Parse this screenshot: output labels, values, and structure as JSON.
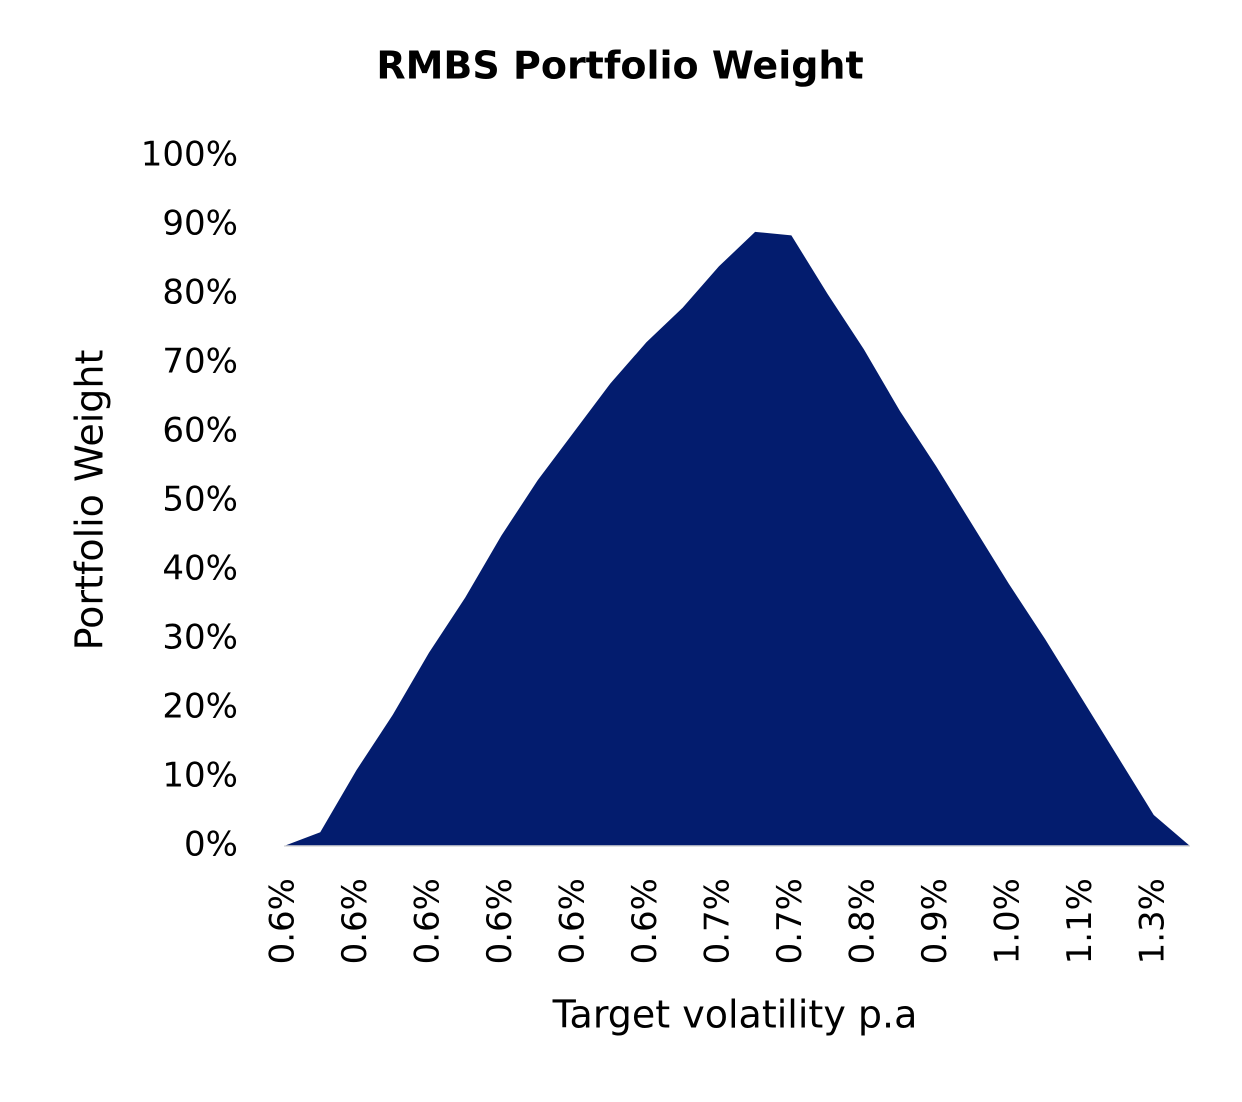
{
  "chart_data": {
    "type": "area",
    "title": "RMBS Portfolio Weight",
    "x_label": "Target volatility p.a",
    "y_label": "Portfolio Weight",
    "categories": [
      "0.6%",
      null,
      "0.6%",
      null,
      "0.6%",
      null,
      "0.6%",
      null,
      "0.6%",
      null,
      "0.6%",
      null,
      "0.7%",
      null,
      "0.7%",
      null,
      "0.8%",
      null,
      "0.9%",
      null,
      "1.0%",
      null,
      "1.1%",
      null,
      "1.3%",
      null
    ],
    "values": [
      0,
      2,
      11,
      19,
      28,
      36,
      45,
      53,
      60,
      67,
      73,
      78,
      84,
      89,
      88.5,
      80,
      72,
      63,
      55,
      46.5,
      38,
      30,
      21.5,
      13,
      4.5,
      0
    ],
    "color": "#031c6e",
    "ylim": [
      0,
      100
    ],
    "yticks": [
      {
        "value": 0,
        "label": "0%"
      },
      {
        "value": 10,
        "label": "10%"
      },
      {
        "value": 20,
        "label": "20%"
      },
      {
        "value": 30,
        "label": "30%"
      },
      {
        "value": 40,
        "label": "40%"
      },
      {
        "value": 50,
        "label": "50%"
      },
      {
        "value": 60,
        "label": "60%"
      },
      {
        "value": 70,
        "label": "70%"
      },
      {
        "value": 80,
        "label": "80%"
      },
      {
        "value": 90,
        "label": "90%"
      },
      {
        "value": 100,
        "label": "100%"
      }
    ],
    "grid": false
  }
}
